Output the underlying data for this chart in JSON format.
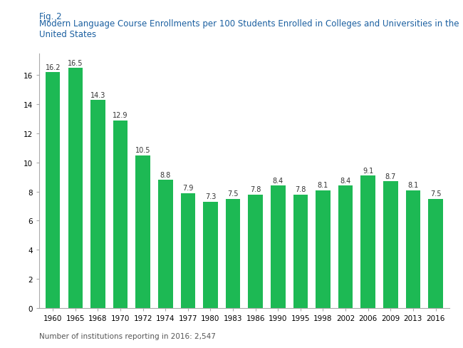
{
  "years": [
    "1960",
    "1965",
    "1968",
    "1970",
    "1972",
    "1974",
    "1977",
    "1980",
    "1983",
    "1986",
    "1990",
    "1995",
    "1998",
    "2002",
    "2006",
    "2009",
    "2013",
    "2016"
  ],
  "values": [
    16.2,
    16.5,
    14.3,
    12.9,
    10.5,
    8.8,
    7.9,
    7.3,
    7.5,
    7.8,
    8.4,
    7.8,
    8.1,
    8.4,
    9.1,
    8.7,
    8.1,
    7.5
  ],
  "bar_color": "#1db954",
  "fig2_label": "Fig. 2",
  "title": "Modern Language Course Enrollments per 100 Students Enrolled in Colleges and Universities in the United States",
  "footnote": "Number of institutions reporting in 2016: 2,547",
  "ylim": [
    0,
    17.5
  ],
  "yticks": [
    0,
    2,
    4,
    6,
    8,
    10,
    12,
    14,
    16
  ],
  "label_fontsize": 7.0,
  "title_fontsize": 8.5,
  "fig2_fontsize": 8.5,
  "footnote_fontsize": 7.5,
  "tick_fontsize": 7.5,
  "title_color": "#1a5fa0",
  "fig2_color": "#1a5fa0",
  "label_color": "#333333"
}
